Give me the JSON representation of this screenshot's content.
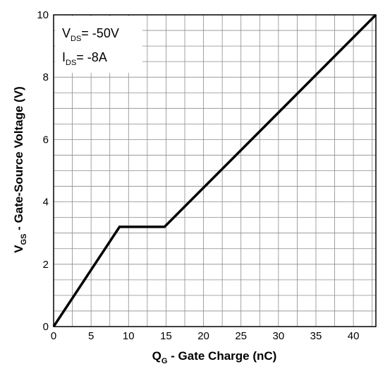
{
  "chart_data": {
    "type": "line",
    "xlabel_main": "Q",
    "xlabel_sub": "G",
    "xlabel_rest": " - Gate Charge (nC)",
    "ylabel_main": "V",
    "ylabel_sub": "GS",
    "ylabel_rest": " - Gate-Source Voltage (V)",
    "xlim": [
      0,
      43
    ],
    "ylim": [
      0,
      10
    ],
    "xticks": [
      0,
      5,
      10,
      15,
      20,
      25,
      30,
      35,
      40
    ],
    "yticks": [
      0,
      2,
      4,
      6,
      8,
      10
    ],
    "x_minor_step": 2.5,
    "y_minor_step": 1,
    "grid": true,
    "series": [
      {
        "x": [
          0,
          8.8,
          14.8,
          43
        ],
        "y": [
          0,
          3.2,
          3.2,
          10
        ]
      }
    ],
    "annotations": [
      {
        "main": "V",
        "sub": "DS",
        "rest": "= -50V"
      },
      {
        "main": "I",
        "sub": "DS",
        "rest": "= -8A"
      }
    ]
  }
}
